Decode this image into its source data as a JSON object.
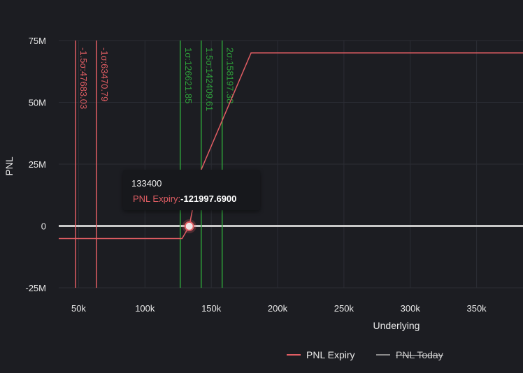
{
  "chart_data": {
    "type": "line",
    "xlabel": "Underlying",
    "ylabel": "PNL",
    "xlim": [
      35000,
      385000
    ],
    "ylim": [
      -25000000,
      75000000
    ],
    "x_ticks": [
      50000,
      100000,
      150000,
      200000,
      250000,
      300000,
      350000
    ],
    "x_tick_labels": [
      "50k",
      "100k",
      "150k",
      "200k",
      "250k",
      "300k",
      "350k"
    ],
    "y_ticks": [
      -25000000,
      0,
      25000000,
      50000000,
      75000000
    ],
    "y_tick_labels": [
      "-25M",
      "0",
      "25M",
      "50M",
      "75M"
    ],
    "grid": true,
    "legend_position": "bottom-right",
    "series": [
      {
        "name": "PNL Expiry",
        "color": "#e05d63",
        "x": [
          35000,
          128000,
          133400,
          141000,
          180000,
          385000
        ],
        "y": [
          -5100000,
          -5100000,
          -121997.69,
          21000000,
          70000000,
          70000000
        ]
      },
      {
        "name": "PNL Today",
        "color": "#c8c8c8",
        "legend_hidden": true,
        "x": [
          35000,
          385000
        ],
        "y": [
          0,
          0
        ]
      }
    ],
    "vertical_markers": [
      {
        "x": 47683.03,
        "label": "-1.5σ:47683.03",
        "color": "#e05d63"
      },
      {
        "x": 63470.79,
        "label": "-1σ:63470.79",
        "color": "#e05d63"
      },
      {
        "x": 126621.85,
        "label": "1σ:126621.85",
        "color": "#2e9e3a"
      },
      {
        "x": 142409.61,
        "label": "1.5σ:142409.61",
        "color": "#2e9e3a"
      },
      {
        "x": 158197.38,
        "label": "2σ:158197.38",
        "color": "#2e9e3a"
      }
    ],
    "hover_point": {
      "x": 133400,
      "y": -121997.69
    }
  },
  "tooltip": {
    "x_value": "133400",
    "series_name": "PNL Expiry:",
    "value": "-121997.6900"
  },
  "legend": [
    {
      "label": "PNL Expiry",
      "color": "#e05d63"
    },
    {
      "label": "PNL Today",
      "color": "#8a8a8a"
    }
  ]
}
